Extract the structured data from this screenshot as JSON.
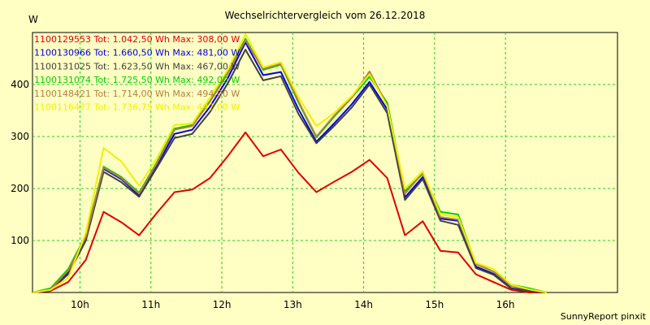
{
  "chart_data": {
    "type": "line",
    "title": "Wechselrichtervergleich vom 26.12.2018",
    "ylabel": "W",
    "footer": "SunnyReport pinxit",
    "ylim": [
      0,
      500
    ],
    "xlim": [
      9.33,
      17.58
    ],
    "y_ticks": [
      100,
      200,
      300,
      400
    ],
    "x_ticks": [
      {
        "value": 10,
        "label": "10h"
      },
      {
        "value": 11,
        "label": "11h"
      },
      {
        "value": 12,
        "label": "12h"
      },
      {
        "value": 13,
        "label": "13h"
      },
      {
        "value": 14,
        "label": "14h"
      },
      {
        "value": 15,
        "label": "15h"
      },
      {
        "value": 16,
        "label": "16h"
      }
    ],
    "grid": true,
    "x": [
      9.333,
      9.583,
      9.833,
      10.083,
      10.333,
      10.583,
      10.833,
      11.083,
      11.333,
      11.583,
      11.833,
      12.083,
      12.333,
      12.583,
      12.833,
      13.083,
      13.333,
      13.583,
      13.833,
      14.083,
      14.333,
      14.583,
      14.833,
      15.083,
      15.333,
      15.583,
      15.833,
      16.083,
      16.333,
      16.583
    ],
    "series": [
      {
        "name": "1100129553",
        "summary": "Tot: 1.042,50 Wh Max: 308,00 W",
        "color": "#e00000",
        "values": [
          0,
          3,
          20,
          63,
          155,
          135,
          110,
          153,
          193,
          198,
          220,
          262,
          308,
          262,
          275,
          230,
          193,
          213,
          232,
          255,
          220,
          110,
          137,
          80,
          77,
          35,
          20,
          5,
          0,
          0
        ]
      },
      {
        "name": "1100130966",
        "summary": "Tot: 1.660,50 Wh Max: 481,00 W",
        "color": "#0000e0",
        "values": [
          0,
          5,
          38,
          104,
          238,
          218,
          187,
          245,
          305,
          313,
          357,
          412,
          481,
          418,
          424,
          352,
          290,
          325,
          362,
          405,
          352,
          183,
          222,
          142,
          138,
          50,
          36,
          8,
          4,
          0
        ]
      },
      {
        "name": "1100131025",
        "summary": "Tot: 1.623,50 Wh Max: 467,00 W",
        "color": "#404040",
        "values": [
          0,
          4,
          35,
          100,
          232,
          212,
          184,
          240,
          297,
          305,
          347,
          402,
          467,
          408,
          416,
          343,
          287,
          320,
          356,
          400,
          345,
          178,
          218,
          138,
          130,
          47,
          34,
          7,
          3,
          0
        ]
      },
      {
        "name": "1100131074",
        "summary": "Tot: 1.725,50 Wh Max: 492,00 W",
        "color": "#00d000",
        "values": [
          0,
          8,
          45,
          110,
          242,
          222,
          192,
          250,
          315,
          322,
          368,
          423,
          488,
          428,
          438,
          365,
          298,
          338,
          375,
          415,
          365,
          195,
          228,
          155,
          150,
          55,
          40,
          15,
          8,
          0
        ]
      },
      {
        "name": "1100148421",
        "summary": "Tot: 1.714,00 Wh Max: 494,00 W",
        "color": "#b08040",
        "values": [
          0,
          6,
          42,
          107,
          240,
          220,
          190,
          248,
          313,
          320,
          367,
          421,
          485,
          430,
          440,
          367,
          300,
          340,
          375,
          425,
          360,
          190,
          230,
          145,
          140,
          55,
          40,
          12,
          6,
          0
        ]
      },
      {
        "name": "1100116477",
        "summary": "Tot: 1.736,75 Wh Max: 497,00 W",
        "color": "#f0f000",
        "values": [
          0,
          5,
          28,
          115,
          278,
          252,
          205,
          258,
          322,
          325,
          375,
          428,
          497,
          433,
          443,
          375,
          320,
          345,
          378,
          420,
          358,
          200,
          233,
          150,
          145,
          57,
          45,
          15,
          6,
          0
        ]
      }
    ]
  }
}
